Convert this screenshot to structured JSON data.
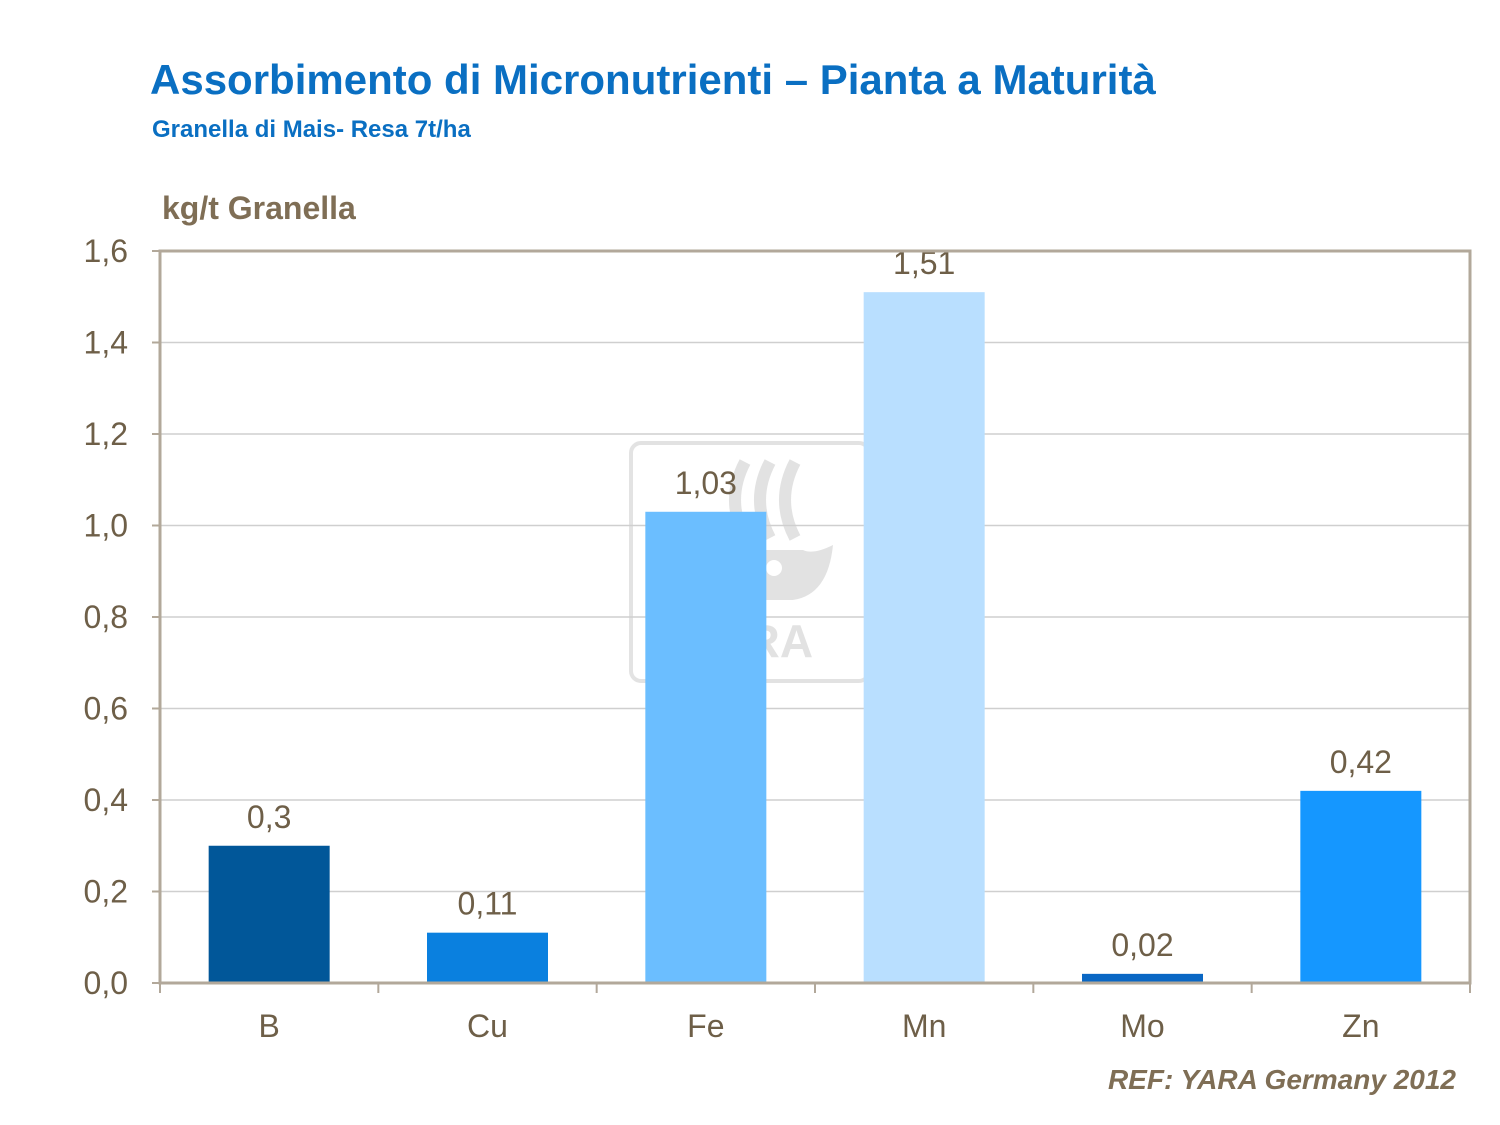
{
  "page": {
    "title": "Assorbimento di Micronutrienti – Pianta a Maturità",
    "subtitle": "Granella di Mais- Resa 7t/ha",
    "reference": "REF: YARA Germany 2012",
    "watermark_text": "YARA"
  },
  "colors": {
    "title": "#0a6fc2",
    "axis_text": "#6e5f48",
    "frame": "#b2a89a",
    "grid": "#cfcfcf"
  },
  "chart_data": {
    "type": "bar",
    "title": "",
    "xlabel": "",
    "ylabel": "kg/t Granella",
    "categories": [
      "B",
      "Cu",
      "Fe",
      "Mn",
      "Mo",
      "Zn"
    ],
    "values": [
      0.3,
      0.11,
      1.03,
      1.51,
      0.02,
      0.42
    ],
    "value_labels": [
      "0,3",
      "0,11",
      "1,03",
      "1,51",
      "0,02",
      "0,42"
    ],
    "bar_colors": [
      "#015799",
      "#0a80df",
      "#6bbeff",
      "#b9dfff",
      "#0a67c4",
      "#1597ff"
    ],
    "ylim": [
      0,
      1.6
    ],
    "yticks": [
      0,
      0.2,
      0.4,
      0.6,
      0.8,
      1.0,
      1.2,
      1.4,
      1.6
    ],
    "ytick_labels": [
      "0,0",
      "0,2",
      "0,4",
      "0,6",
      "0,8",
      "1,0",
      "1,2",
      "1,4",
      "1,6"
    ],
    "grid": true,
    "legend": "none"
  }
}
